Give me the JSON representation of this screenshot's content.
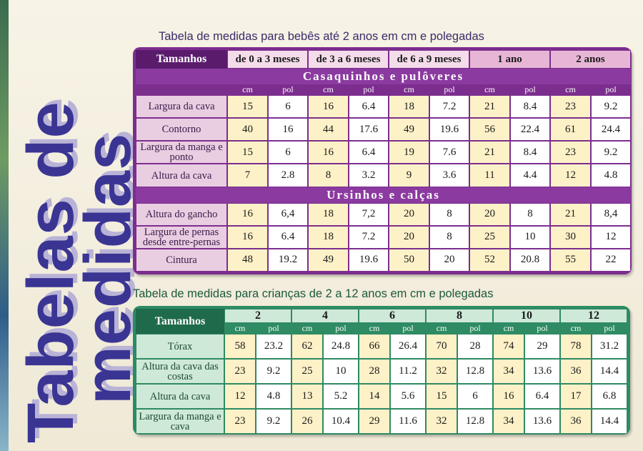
{
  "side_title": {
    "line1": "Tabelas de",
    "line2": "medidas"
  },
  "babies": {
    "caption": "Tabela de medidas para bebês até 2 anos em cm e polegadas",
    "sizes_label": "Tamanhos",
    "ages": [
      "de 0 a 3 meses",
      "de 3 a 6 meses",
      "de 6 a 9 meses",
      "1 ano",
      "2 anos"
    ],
    "units": [
      "cm",
      "pol"
    ],
    "sections": [
      {
        "title": "Casaquinhos e pulôveres",
        "rows": [
          {
            "label": "Largura da cava",
            "values": [
              "15",
              "6",
              "16",
              "6.4",
              "18",
              "7.2",
              "21",
              "8.4",
              "23",
              "9.2"
            ]
          },
          {
            "label": "Contorno",
            "values": [
              "40",
              "16",
              "44",
              "17.6",
              "49",
              "19.6",
              "56",
              "22.4",
              "61",
              "24.4"
            ]
          },
          {
            "label": "Largura da manga e ponto",
            "values": [
              "15",
              "6",
              "16",
              "6.4",
              "19",
              "7.6",
              "21",
              "8.4",
              "23",
              "9.2"
            ]
          },
          {
            "label": "Altura da cava",
            "values": [
              "7",
              "2.8",
              "8",
              "3.2",
              "9",
              "3.6",
              "11",
              "4.4",
              "12",
              "4.8"
            ]
          }
        ]
      },
      {
        "title": "Ursinhos e calças",
        "rows": [
          {
            "label": "Altura do gancho",
            "values": [
              "16",
              "6,4",
              "18",
              "7,2",
              "20",
              "8",
              "20",
              "8",
              "21",
              "8,4"
            ]
          },
          {
            "label": "Largura de pernas desde entre-pernas",
            "values": [
              "16",
              "6.4",
              "18",
              "7.2",
              "20",
              "8",
              "25",
              "10",
              "30",
              "12"
            ]
          },
          {
            "label": "Cintura",
            "values": [
              "48",
              "19.2",
              "49",
              "19.6",
              "50",
              "20",
              "52",
              "20.8",
              "55",
              "22"
            ]
          }
        ]
      }
    ]
  },
  "children": {
    "caption": "Tabela de medidas para crianças de 2 a 12 anos em cm e polegadas",
    "sizes_label": "Tamanhos",
    "ages": [
      "2",
      "4",
      "6",
      "8",
      "10",
      "12"
    ],
    "units": [
      "cm",
      "pol"
    ],
    "rows": [
      {
        "label": "Tórax",
        "values": [
          "58",
          "23.2",
          "62",
          "24.8",
          "66",
          "26.4",
          "70",
          "28",
          "74",
          "29",
          "78",
          "31.2"
        ]
      },
      {
        "label": "Altura da cava das costas",
        "values": [
          "23",
          "9.2",
          "25",
          "10",
          "28",
          "11.2",
          "32",
          "12.8",
          "34",
          "13.6",
          "36",
          "14.4"
        ]
      },
      {
        "label": "Altura da cava",
        "values": [
          "12",
          "4.8",
          "13",
          "5.2",
          "14",
          "5.6",
          "15",
          "6",
          "16",
          "6.4",
          "17",
          "6.8"
        ]
      },
      {
        "label": "Largura da manga e cava",
        "values": [
          "23",
          "9.2",
          "26",
          "10.4",
          "29",
          "11.6",
          "32",
          "12.8",
          "34",
          "13.6",
          "36",
          "14.4"
        ]
      }
    ]
  },
  "colors": {
    "purple": "#7c2e8e",
    "green": "#2e8b63",
    "title": "#3a3593",
    "cream": "#fdf1c7"
  }
}
